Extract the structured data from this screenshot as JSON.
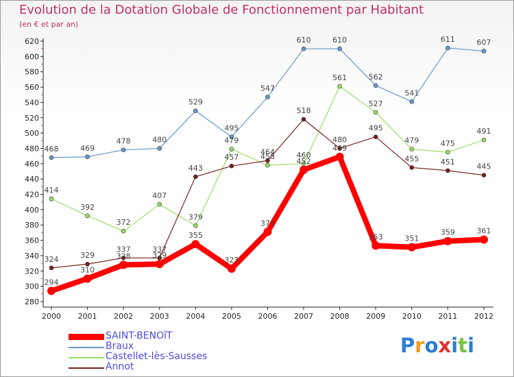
{
  "title": "Evolution de la Dotation Globale de Fonctionnement par Habitant",
  "subtitle": "(en € et par an)",
  "chart_data": {
    "type": "line",
    "x": [
      "2000",
      "2001",
      "2002",
      "2003",
      "2004",
      "2005",
      "2006",
      "2007",
      "2008",
      "2009",
      "2010",
      "2011",
      "2012"
    ],
    "ylim": [
      280,
      620
    ],
    "yticks": [
      280,
      300,
      320,
      340,
      360,
      380,
      400,
      420,
      440,
      460,
      480,
      500,
      520,
      540,
      560,
      580,
      600,
      620
    ],
    "grid": false,
    "legend_position": "bottom-left",
    "series": [
      {
        "name": "SAINT-BENOîT",
        "color": "#ff0000",
        "values": [
          294,
          310,
          328,
          329,
          355,
          323,
          371,
          452,
          469,
          353,
          351,
          359,
          361
        ]
      },
      {
        "name": "Braux",
        "color": "#6699cc",
        "values": [
          468,
          469,
          478,
          480,
          529,
          495,
          547,
          610,
          610,
          562,
          541,
          611,
          607
        ]
      },
      {
        "name": "Castellet-lès-Sausses",
        "color": "#99dd66",
        "values": [
          414,
          392,
          372,
          407,
          379,
          479,
          458,
          460,
          561,
          527,
          479,
          475,
          491
        ]
      },
      {
        "name": "Annot",
        "color": "#772222",
        "values": [
          324,
          329,
          337,
          337,
          443,
          457,
          464,
          518,
          480,
          495,
          455,
          451,
          445
        ]
      }
    ]
  },
  "logo": {
    "letters": [
      "P",
      "r",
      "o",
      "x",
      "i",
      "t",
      "i"
    ],
    "colors": [
      "#2a7fd4",
      "#f29a1f",
      "#2a7fd4",
      "#e03030",
      "#2a7fd4",
      "#7cc242",
      "#2a7fd4"
    ]
  }
}
